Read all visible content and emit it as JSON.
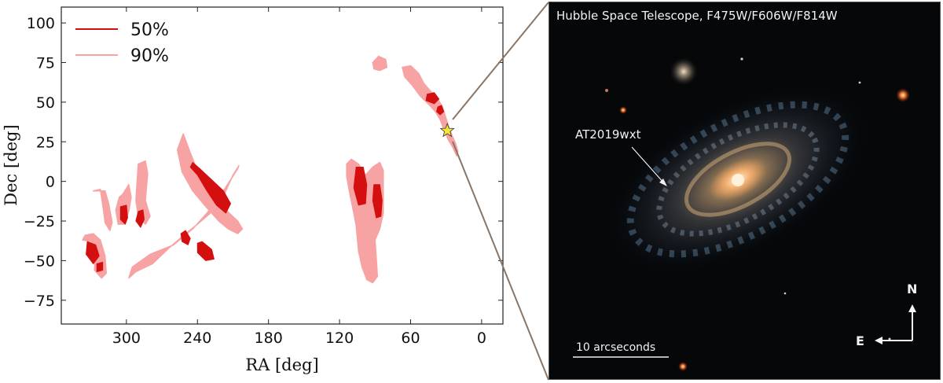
{
  "chart_data": {
    "type": "contour",
    "xlabel": "RA [deg]",
    "ylabel": "Dec [deg]",
    "xlim": [
      355,
      -18
    ],
    "ylim": [
      -90,
      110
    ],
    "x_ticks": [
      300,
      240,
      180,
      120,
      60,
      0
    ],
    "y_ticks": [
      100,
      75,
      50,
      25,
      0,
      -25,
      -50,
      -75
    ],
    "legend": {
      "location": "top-left",
      "entries": [
        {
          "label": "50%",
          "color": "#d40f0f"
        },
        {
          "label": "90%",
          "color": "#f7a3a3"
        }
      ]
    },
    "regions_90": [
      {
        "name": "northern-arc",
        "points": [
          [
            67,
            72
          ],
          [
            60,
            73
          ],
          [
            53,
            68
          ],
          [
            49,
            62
          ],
          [
            42,
            56
          ],
          [
            37,
            52
          ],
          [
            33,
            47
          ],
          [
            31,
            42
          ],
          [
            28,
            35
          ],
          [
            25,
            29
          ],
          [
            22,
            24
          ],
          [
            20,
            19
          ],
          [
            21,
            16
          ],
          [
            24,
            21
          ],
          [
            28,
            26
          ],
          [
            32,
            33
          ],
          [
            35,
            39
          ],
          [
            39,
            44
          ],
          [
            44,
            48
          ],
          [
            52,
            54
          ],
          [
            59,
            61
          ],
          [
            65,
            66
          ]
        ]
      },
      {
        "name": "northern-tip",
        "points": [
          [
            92,
            75
          ],
          [
            87,
            79
          ],
          [
            81,
            77
          ],
          [
            80,
            72
          ],
          [
            86,
            70
          ],
          [
            91,
            71
          ]
        ]
      },
      {
        "name": "central-east-blob",
        "points": [
          [
            110,
            14
          ],
          [
            104,
            11
          ],
          [
            98,
            4
          ],
          [
            92,
            9
          ],
          [
            86,
            12
          ],
          [
            83,
            7
          ],
          [
            83,
            -20
          ],
          [
            86,
            -30
          ],
          [
            90,
            -37
          ],
          [
            89,
            -48
          ],
          [
            88,
            -60
          ],
          [
            92,
            -64
          ],
          [
            97,
            -62
          ],
          [
            101,
            -54
          ],
          [
            104,
            -44
          ],
          [
            105,
            -36
          ],
          [
            106,
            -28
          ],
          [
            108,
            -20
          ],
          [
            111,
            -9
          ],
          [
            114,
            3
          ],
          [
            114,
            11
          ]
        ]
      },
      {
        "name": "western-main-arc",
        "points": [
          [
            252,
            30
          ],
          [
            246,
            18
          ],
          [
            238,
            3
          ],
          [
            228,
            -8
          ],
          [
            216,
            -18
          ],
          [
            206,
            -25
          ],
          [
            202,
            -30
          ],
          [
            206,
            -33
          ],
          [
            214,
            -30
          ],
          [
            222,
            -25
          ],
          [
            234,
            -15
          ],
          [
            244,
            -6
          ],
          [
            253,
            6
          ],
          [
            257,
            20
          ]
        ]
      },
      {
        "name": "western-blob",
        "points": [
          [
            290,
            11
          ],
          [
            284,
            13
          ],
          [
            282,
            5
          ],
          [
            284,
            -12
          ],
          [
            280,
            -22
          ],
          [
            284,
            -27
          ],
          [
            290,
            -22
          ],
          [
            292,
            -12
          ],
          [
            291,
            0
          ]
        ]
      },
      {
        "name": "western-middle-arc",
        "points": [
          [
            205,
            10
          ],
          [
            210,
            4
          ],
          [
            216,
            -6
          ],
          [
            226,
            -18
          ],
          [
            240,
            -27
          ],
          [
            250,
            -33
          ],
          [
            264,
            -42
          ],
          [
            278,
            -52
          ],
          [
            292,
            -57
          ],
          [
            298,
            -61
          ],
          [
            295,
            -54
          ],
          [
            280,
            -46
          ],
          [
            260,
            -40
          ],
          [
            244,
            -30
          ],
          [
            232,
            -20
          ],
          [
            220,
            -8
          ],
          [
            212,
            1
          ],
          [
            206,
            8
          ]
        ]
      },
      {
        "name": "western-left-arc",
        "points": [
          [
            303,
            -8
          ],
          [
            298,
            -2
          ],
          [
            296,
            -10
          ],
          [
            298,
            -19
          ],
          [
            302,
            -27
          ],
          [
            307,
            -27
          ],
          [
            309,
            -18
          ],
          [
            306,
            -10
          ]
        ]
      },
      {
        "name": "far-west-strip",
        "points": [
          [
            328,
            -6
          ],
          [
            322,
            -5
          ],
          [
            320,
            -15
          ],
          [
            318,
            -26
          ],
          [
            314,
            -31
          ],
          [
            312,
            -26
          ],
          [
            315,
            -14
          ],
          [
            318,
            -6
          ],
          [
            324,
            -6
          ]
        ]
      },
      {
        "name": "far-west-blob",
        "points": [
          [
            337,
            -37
          ],
          [
            330,
            -38
          ],
          [
            326,
            -44
          ],
          [
            327,
            -56
          ],
          [
            321,
            -61
          ],
          [
            317,
            -58
          ],
          [
            318,
            -47
          ],
          [
            322,
            -37
          ],
          [
            328,
            -33
          ],
          [
            335,
            -34
          ]
        ]
      }
    ],
    "regions_50": [
      {
        "name": "northern-core-a",
        "points": [
          [
            46,
            55
          ],
          [
            40,
            56
          ],
          [
            36,
            52
          ],
          [
            40,
            49
          ],
          [
            47,
            51
          ]
        ]
      },
      {
        "name": "northern-core-b",
        "points": [
          [
            37,
            47
          ],
          [
            34,
            48
          ],
          [
            32,
            44
          ],
          [
            35,
            42
          ],
          [
            38,
            44
          ]
        ]
      },
      {
        "name": "east-core-a",
        "points": [
          [
            106,
            9
          ],
          [
            100,
            9
          ],
          [
            97,
            -2
          ],
          [
            98,
            -14
          ],
          [
            104,
            -15
          ],
          [
            108,
            -4
          ]
        ]
      },
      {
        "name": "east-core-b",
        "points": [
          [
            91,
            -2
          ],
          [
            86,
            -2
          ],
          [
            84,
            -12
          ],
          [
            85,
            -22
          ],
          [
            89,
            -23
          ],
          [
            92,
            -12
          ]
        ]
      },
      {
        "name": "west-core-main",
        "points": [
          [
            246,
            9
          ],
          [
            240,
            4
          ],
          [
            232,
            -6
          ],
          [
            224,
            -15
          ],
          [
            216,
            -20
          ],
          [
            212,
            -14
          ],
          [
            218,
            -6
          ],
          [
            228,
            1
          ],
          [
            238,
            8
          ],
          [
            244,
            12
          ]
        ]
      },
      {
        "name": "west-core-blob",
        "points": [
          [
            290,
            -19
          ],
          [
            286,
            -18
          ],
          [
            285,
            -24
          ],
          [
            288,
            -29
          ],
          [
            292,
            -25
          ]
        ]
      },
      {
        "name": "west-core-mid-a",
        "points": [
          [
            240,
            -39
          ],
          [
            236,
            -38
          ],
          [
            228,
            -43
          ],
          [
            226,
            -49
          ],
          [
            233,
            -50
          ],
          [
            240,
            -45
          ]
        ]
      },
      {
        "name": "west-core-mid-b",
        "points": [
          [
            254,
            -33
          ],
          [
            250,
            -31
          ],
          [
            246,
            -36
          ],
          [
            248,
            -40
          ],
          [
            253,
            -38
          ]
        ]
      },
      {
        "name": "west-core-left",
        "points": [
          [
            305,
            -16
          ],
          [
            300,
            -15
          ],
          [
            299,
            -23
          ],
          [
            301,
            -27
          ],
          [
            305,
            -24
          ]
        ]
      },
      {
        "name": "far-west-core-a",
        "points": [
          [
            333,
            -38
          ],
          [
            326,
            -40
          ],
          [
            323,
            -47
          ],
          [
            328,
            -52
          ],
          [
            334,
            -46
          ]
        ]
      },
      {
        "name": "far-west-core-b",
        "points": [
          [
            325,
            -52
          ],
          [
            320,
            -51
          ],
          [
            320,
            -56
          ],
          [
            325,
            -57
          ]
        ]
      }
    ],
    "marker": {
      "label": "AT2019wxt",
      "shape": "star",
      "color": "#f5e63c",
      "ra": 29,
      "dec": 32
    }
  },
  "hst_panel": {
    "title": "Hubble Space Telescope, F475W/F606W/F814W",
    "target_label": "AT2019wxt",
    "scale_bar_label": "10 arcseconds",
    "compass": {
      "north": "N",
      "east": "E"
    }
  }
}
